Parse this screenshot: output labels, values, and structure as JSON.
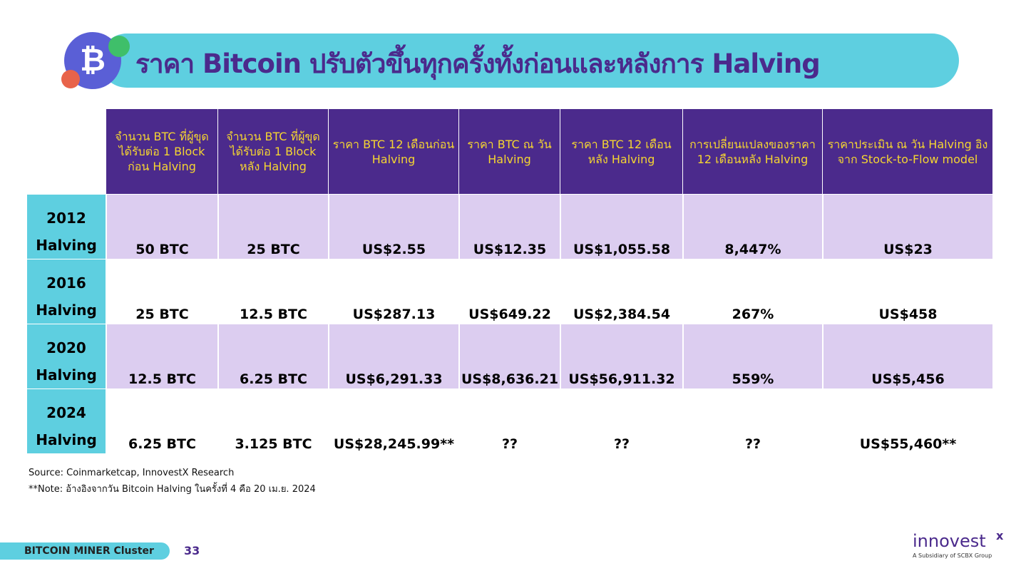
{
  "header": {
    "title": "ราคา Bitcoin ปรับตัวขึ้นทุกครั้งทั้งก่อนและหลังการ Halving"
  },
  "table": {
    "headers": [
      "จำนวน BTC ที่ผู้ขุดได้รับต่อ 1 Block ก่อน Halving",
      "จำนวน BTC ที่ผู้ขุดได้รับต่อ 1 Block หลัง Halving",
      "ราคา BTC 12 เดือนก่อน Halving",
      "ราคา BTC ณ วัน Halving",
      "ราคา BTC 12 เดือน หลัง Halving",
      "การเปลี่ยนแปลงของราคา 12 เดือนหลัง Halving",
      "ราคาประเมิน ณ วัน Halving อิงจาก Stock-to-Flow model"
    ],
    "rows": [
      {
        "label": "2012 Halving",
        "cells": [
          "50 BTC",
          "25 BTC",
          "US$2.55",
          "US$12.35",
          "US$1,055.58",
          "8,447%",
          "US$23"
        ]
      },
      {
        "label": "2016 Halving",
        "cells": [
          "25 BTC",
          "12.5 BTC",
          "US$287.13",
          "US$649.22",
          "US$2,384.54",
          "267%",
          "US$458"
        ]
      },
      {
        "label": "2020 Halving",
        "cells": [
          "12.5 BTC",
          "6.25 BTC",
          "US$6,291.33",
          "US$8,636.21",
          "US$56,911.32",
          "559%",
          "US$5,456"
        ]
      },
      {
        "label": "2024 Halving",
        "cells": [
          "6.25 BTC",
          "3.125 BTC",
          "US$28,245.99**",
          "??",
          "??",
          "??",
          "US$55,460**"
        ]
      }
    ]
  },
  "footer": {
    "source": "Source: Coinmarketcap, InnovestX Research",
    "note": "**Note: อ้างอิงจากวัน Bitcoin Halving ในครั้งที่ 4 คือ 20 เม.ย. 2024",
    "badge": "BITCOIN MINER Cluster",
    "page": "33",
    "logo": "innovest",
    "logo_mark": "x",
    "logo_sub": "A Subsidiary of SCBX Group"
  }
}
